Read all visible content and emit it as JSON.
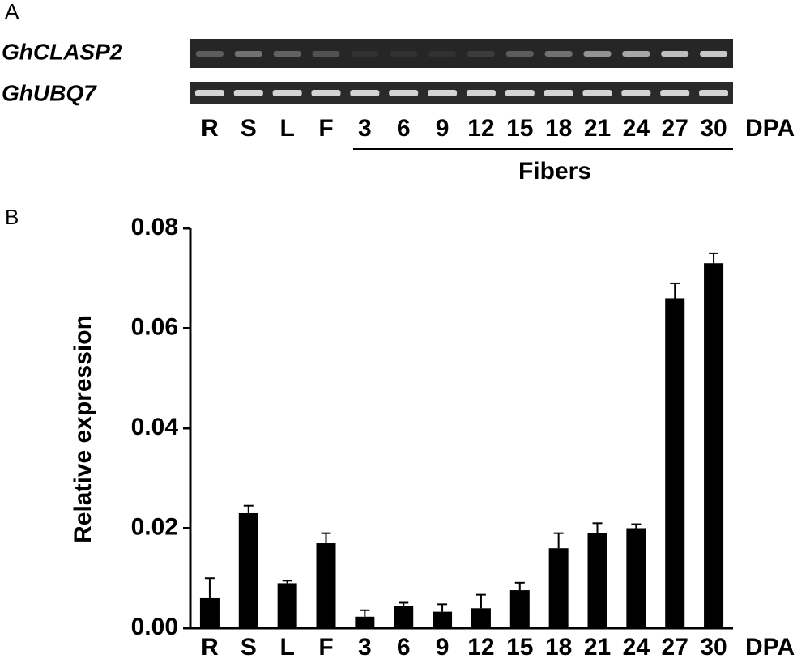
{
  "panel_a": {
    "label": "A",
    "genes": [
      "GhCLASP2",
      "GhUBQ7"
    ],
    "lanes": [
      "R",
      "S",
      "L",
      "F",
      "3",
      "6",
      "9",
      "12",
      "15",
      "18",
      "21",
      "24",
      "27",
      "30"
    ],
    "lane_unit": "DPA",
    "group_label": "Fibers"
  },
  "chart_data": {
    "type": "bar",
    "panel_label": "B",
    "y_label": "Relative expression",
    "x_label": "DPA",
    "categories": [
      "R",
      "S",
      "L",
      "F",
      "3",
      "6",
      "9",
      "12",
      "15",
      "18",
      "21",
      "24",
      "27",
      "30"
    ],
    "values": [
      0.006,
      0.023,
      0.009,
      0.017,
      0.0023,
      0.0044,
      0.0033,
      0.004,
      0.0076,
      0.016,
      0.019,
      0.02,
      0.066,
      0.073
    ],
    "errors": [
      0.004,
      0.0015,
      0.0005,
      0.002,
      0.0013,
      0.0007,
      0.0015,
      0.0027,
      0.0015,
      0.003,
      0.002,
      0.0008,
      0.003,
      0.002
    ],
    "color": "#000000",
    "ylim": [
      0,
      0.08
    ],
    "yticks": [
      {
        "value": 0,
        "label": "0.00"
      },
      0.02,
      0.04,
      0.06,
      0.08
    ]
  }
}
